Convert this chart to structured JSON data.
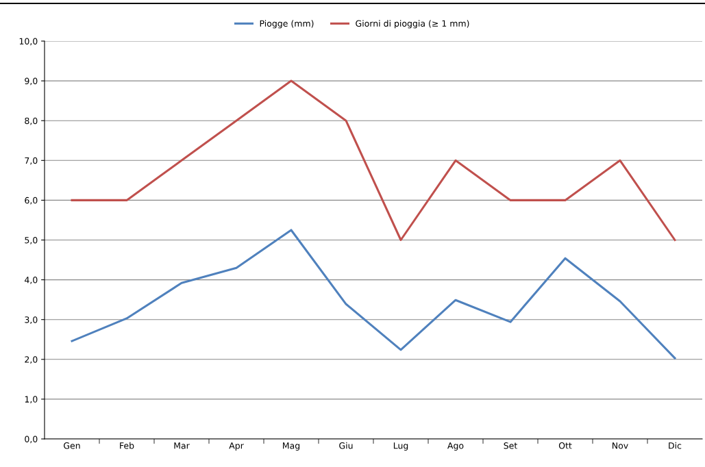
{
  "chart_data": {
    "type": "line",
    "categories": [
      "Gen",
      "Feb",
      "Mar",
      "Apr",
      "Mag",
      "Giu",
      "Lug",
      "Ago",
      "Set",
      "Ott",
      "Nov",
      "Dic"
    ],
    "series": [
      {
        "name": "Piogge (mm)",
        "color": "#4f81bd",
        "values": [
          2.46,
          3.03,
          3.92,
          4.3,
          5.25,
          3.39,
          2.24,
          3.49,
          2.94,
          4.54,
          3.46,
          2.03
        ]
      },
      {
        "name": "Giorni di pioggia (≥ 1 mm)",
        "color": "#c0504d",
        "values": [
          6,
          6,
          7,
          8,
          9,
          8,
          5,
          7,
          6,
          6,
          7,
          5
        ]
      }
    ],
    "ylim": [
      0,
      10
    ],
    "yticks": [
      {
        "value": 0,
        "label": "0,0"
      },
      {
        "value": 1,
        "label": "1,0"
      },
      {
        "value": 2,
        "label": "2,0"
      },
      {
        "value": 3,
        "label": "3,0"
      },
      {
        "value": 4,
        "label": "4,0"
      },
      {
        "value": 5,
        "label": "5,0"
      },
      {
        "value": 6,
        "label": "6,0"
      },
      {
        "value": 7,
        "label": "7,0"
      },
      {
        "value": 8,
        "label": "8,0"
      },
      {
        "value": 9,
        "label": "9,0"
      },
      {
        "value": 10,
        "label": "10,0"
      }
    ],
    "grid": "y",
    "legend": "top",
    "marker": "none",
    "line_style": "solid"
  }
}
